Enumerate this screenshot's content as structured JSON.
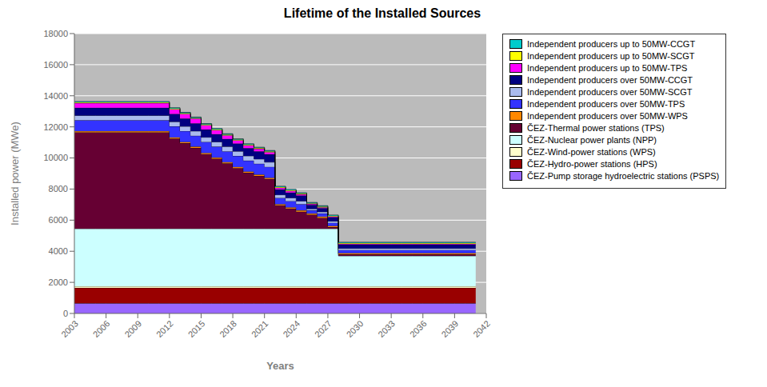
{
  "chart_data": {
    "type": "area",
    "title": "Lifetime of the Installed Sources",
    "xlabel": "Years",
    "ylabel": "Installed power (MWe)",
    "stacked": true,
    "line_style": "step",
    "grid": true,
    "legend": "right",
    "color": "#BBBBBB",
    "x": [
      2003,
      2004,
      2005,
      2006,
      2007,
      2008,
      2009,
      2010,
      2011,
      2012,
      2013,
      2014,
      2015,
      2016,
      2017,
      2018,
      2019,
      2020,
      2021,
      2022,
      2023,
      2024,
      2025,
      2026,
      2027,
      2028,
      2029,
      2030,
      2031,
      2032,
      2033,
      2034,
      2035,
      2036,
      2037,
      2038,
      2039,
      2040,
      2041
    ],
    "xlim": [
      2003,
      2042
    ],
    "xticks": [
      2003,
      2006,
      2009,
      2012,
      2015,
      2018,
      2021,
      2024,
      2027,
      2030,
      2033,
      2036,
      2039,
      2042
    ],
    "ylim": [
      0,
      18000
    ],
    "yticks": [
      0,
      2000,
      4000,
      6000,
      8000,
      10000,
      12000,
      14000,
      16000,
      18000
    ],
    "series": [
      {
        "name": "ČEZ-Pump storage hydroelectric stations (PSPS)",
        "color": "#9966FF",
        "values": [
          650,
          650,
          650,
          650,
          650,
          650,
          650,
          650,
          650,
          650,
          650,
          650,
          650,
          650,
          650,
          650,
          650,
          650,
          650,
          650,
          650,
          650,
          650,
          650,
          650,
          650,
          650,
          650,
          650,
          650,
          650,
          650,
          650,
          650,
          650,
          650,
          650,
          650,
          650
        ]
      },
      {
        "name": "ČEZ-Hydro-power stations (HPS)",
        "color": "#990000",
        "values": [
          1000,
          1000,
          1000,
          1000,
          1000,
          1000,
          1000,
          1000,
          1000,
          1000,
          1000,
          1000,
          1000,
          1000,
          1000,
          1000,
          1000,
          1000,
          1000,
          1000,
          1000,
          1000,
          1000,
          1000,
          1000,
          1000,
          1000,
          1000,
          1000,
          1000,
          1000,
          1000,
          1000,
          1000,
          1000,
          1000,
          1000,
          1000,
          1000
        ]
      },
      {
        "name": "ČEZ-Wind-power stations (WPS)",
        "color": "#FFFFCC",
        "values": [
          100,
          100,
          100,
          100,
          100,
          100,
          100,
          100,
          100,
          100,
          100,
          100,
          100,
          100,
          100,
          100,
          100,
          100,
          100,
          100,
          100,
          100,
          100,
          100,
          100,
          100,
          100,
          100,
          100,
          100,
          100,
          100,
          100,
          100,
          100,
          100,
          100,
          100,
          100
        ]
      },
      {
        "name": "ČEZ-Nuclear power plants (NPP)",
        "color": "#CCFFFF",
        "values": [
          3700,
          3700,
          3700,
          3700,
          3700,
          3700,
          3700,
          3700,
          3700,
          3700,
          3700,
          3700,
          3700,
          3700,
          3700,
          3700,
          3700,
          3700,
          3700,
          3700,
          3700,
          3700,
          3700,
          3700,
          3700,
          1950,
          1950,
          1950,
          1950,
          1950,
          1950,
          1950,
          1950,
          1950,
          1950,
          1950,
          1950,
          1950,
          1950
        ]
      },
      {
        "name": "ČEZ-Thermal power stations (TPS)",
        "color": "#660033",
        "values": [
          6200,
          6200,
          6200,
          6200,
          6200,
          6200,
          6200,
          6200,
          6200,
          5800,
          5500,
          5200,
          4800,
          4500,
          4200,
          3900,
          3600,
          3400,
          3200,
          1500,
          1300,
          1100,
          900,
          700,
          100,
          100,
          100,
          100,
          100,
          100,
          100,
          100,
          100,
          100,
          100,
          100,
          100,
          100,
          100
        ]
      },
      {
        "name": "Independent producers over 50MW-WPS",
        "color": "#FF8800",
        "values": [
          80,
          80,
          80,
          80,
          80,
          80,
          80,
          80,
          80,
          80,
          80,
          80,
          80,
          80,
          80,
          80,
          80,
          80,
          80,
          80,
          80,
          80,
          80,
          80,
          80,
          80,
          80,
          80,
          80,
          80,
          80,
          80,
          80,
          80,
          80,
          80,
          80,
          80,
          80
        ]
      },
      {
        "name": "Independent producers over 50MW-TPS",
        "color": "#3333FF",
        "values": [
          700,
          700,
          700,
          700,
          700,
          700,
          700,
          700,
          700,
          700,
          700,
          700,
          700,
          700,
          700,
          700,
          700,
          700,
          700,
          400,
          400,
          400,
          200,
          200,
          200,
          200,
          200,
          200,
          200,
          200,
          200,
          200,
          200,
          200,
          200,
          200,
          200,
          200,
          200
        ]
      },
      {
        "name": "Independent producers over 50MW-SCGT",
        "color": "#AABBEE",
        "values": [
          300,
          300,
          300,
          300,
          300,
          300,
          300,
          300,
          300,
          300,
          300,
          300,
          300,
          300,
          300,
          300,
          300,
          300,
          300,
          200,
          200,
          200,
          100,
          100,
          100,
          100,
          100,
          100,
          100,
          100,
          100,
          100,
          100,
          100,
          100,
          100,
          100,
          100,
          100
        ]
      },
      {
        "name": "Independent producers over 50MW-CCGT",
        "color": "#000080",
        "values": [
          500,
          500,
          500,
          500,
          500,
          500,
          500,
          500,
          500,
          500,
          500,
          500,
          500,
          500,
          500,
          500,
          500,
          500,
          500,
          350,
          350,
          350,
          250,
          250,
          250,
          250,
          250,
          250,
          250,
          250,
          250,
          250,
          250,
          250,
          250,
          250,
          250,
          250,
          250
        ]
      },
      {
        "name": "Independent producers up to 50MW-TPS",
        "color": "#FF00FF",
        "values": [
          300,
          300,
          300,
          300,
          300,
          300,
          300,
          300,
          300,
          300,
          300,
          300,
          280,
          260,
          230,
          200,
          180,
          160,
          150,
          100,
          100,
          80,
          60,
          50,
          50,
          50,
          50,
          50,
          50,
          50,
          50,
          50,
          50,
          50,
          50,
          50,
          50,
          50,
          50
        ]
      },
      {
        "name": "Independent producers up to 50MW-SCGT",
        "color": "#FFFF00",
        "values": [
          50,
          50,
          50,
          50,
          50,
          50,
          50,
          50,
          50,
          50,
          50,
          50,
          50,
          50,
          50,
          50,
          50,
          50,
          50,
          50,
          50,
          50,
          50,
          50,
          50,
          50,
          50,
          50,
          50,
          50,
          50,
          50,
          50,
          50,
          50,
          50,
          50,
          50,
          50
        ]
      },
      {
        "name": "Independent producers up to 50MW-CCGT",
        "color": "#00CCCC",
        "values": [
          50,
          50,
          50,
          50,
          50,
          50,
          50,
          50,
          50,
          50,
          50,
          50,
          50,
          50,
          50,
          50,
          50,
          50,
          50,
          50,
          50,
          50,
          50,
          50,
          50,
          50,
          50,
          50,
          50,
          50,
          50,
          50,
          50,
          50,
          50,
          50,
          50,
          50,
          50
        ]
      }
    ]
  }
}
